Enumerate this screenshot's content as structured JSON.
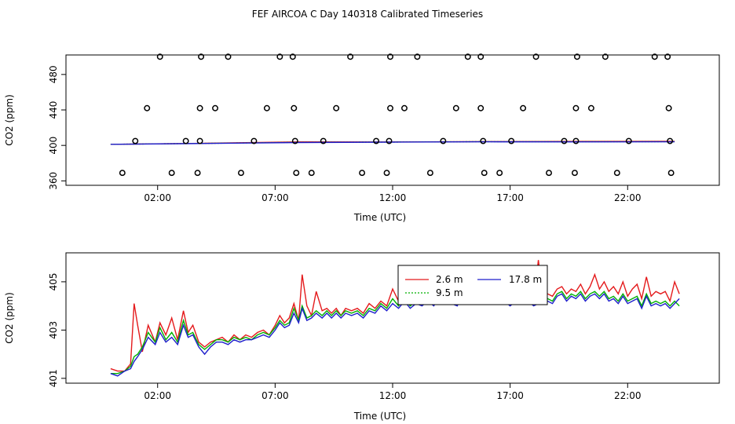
{
  "title": "FEF AIRCOA C  Day 140318  Calibrated Timeseries",
  "colors": {
    "series_2_6": "#e41a1c",
    "series_9_5": "#00b000",
    "series_17_8": "#1f1fcc",
    "axis": "#000000",
    "markers": "#000000"
  },
  "chart_data": [
    {
      "type": "scatter",
      "title": "",
      "xlabel": "Time (UTC)",
      "ylabel": "CO2 (ppm)",
      "xlim": [
        -1.9,
        25.9
      ],
      "ylim": [
        355,
        502
      ],
      "xticks": [
        2,
        7,
        12,
        17,
        22
      ],
      "xtick_labels": [
        "02:00",
        "07:00",
        "12:00",
        "17:00",
        "22:00"
      ],
      "yticks": [
        360,
        400,
        440,
        480
      ],
      "ytick_labels": [
        "360",
        "400",
        "440",
        "480"
      ],
      "calibration_points": [
        {
          "x": 2.1,
          "y": 500
        },
        {
          "x": 3.85,
          "y": 500
        },
        {
          "x": 5.0,
          "y": 500
        },
        {
          "x": 7.2,
          "y": 500
        },
        {
          "x": 7.75,
          "y": 500
        },
        {
          "x": 10.2,
          "y": 500
        },
        {
          "x": 11.9,
          "y": 500
        },
        {
          "x": 13.05,
          "y": 500
        },
        {
          "x": 15.2,
          "y": 500
        },
        {
          "x": 15.75,
          "y": 500
        },
        {
          "x": 18.1,
          "y": 500
        },
        {
          "x": 19.85,
          "y": 500
        },
        {
          "x": 21.05,
          "y": 500
        },
        {
          "x": 23.15,
          "y": 500
        },
        {
          "x": 23.7,
          "y": 500
        },
        {
          "x": 1.55,
          "y": 442
        },
        {
          "x": 3.8,
          "y": 442
        },
        {
          "x": 4.45,
          "y": 442
        },
        {
          "x": 6.65,
          "y": 442
        },
        {
          "x": 7.8,
          "y": 442
        },
        {
          "x": 9.6,
          "y": 442
        },
        {
          "x": 11.9,
          "y": 442
        },
        {
          "x": 12.5,
          "y": 442
        },
        {
          "x": 14.7,
          "y": 442
        },
        {
          "x": 15.75,
          "y": 442
        },
        {
          "x": 17.55,
          "y": 442
        },
        {
          "x": 19.8,
          "y": 442
        },
        {
          "x": 20.45,
          "y": 442
        },
        {
          "x": 23.75,
          "y": 442
        },
        {
          "x": 1.05,
          "y": 405
        },
        {
          "x": 3.2,
          "y": 405
        },
        {
          "x": 3.8,
          "y": 405
        },
        {
          "x": 6.1,
          "y": 405
        },
        {
          "x": 7.85,
          "y": 405
        },
        {
          "x": 9.05,
          "y": 405
        },
        {
          "x": 11.3,
          "y": 405
        },
        {
          "x": 11.85,
          "y": 405
        },
        {
          "x": 14.15,
          "y": 405
        },
        {
          "x": 15.85,
          "y": 405
        },
        {
          "x": 17.05,
          "y": 405
        },
        {
          "x": 19.3,
          "y": 405
        },
        {
          "x": 19.8,
          "y": 405
        },
        {
          "x": 22.05,
          "y": 405
        },
        {
          "x": 23.8,
          "y": 405
        },
        {
          "x": 0.5,
          "y": 369
        },
        {
          "x": 2.6,
          "y": 369
        },
        {
          "x": 3.7,
          "y": 369
        },
        {
          "x": 5.55,
          "y": 369
        },
        {
          "x": 7.9,
          "y": 369
        },
        {
          "x": 8.55,
          "y": 369
        },
        {
          "x": 10.7,
          "y": 369
        },
        {
          "x": 11.75,
          "y": 369
        },
        {
          "x": 13.6,
          "y": 369
        },
        {
          "x": 15.9,
          "y": 369
        },
        {
          "x": 16.55,
          "y": 369
        },
        {
          "x": 18.65,
          "y": 369
        },
        {
          "x": 19.75,
          "y": 369
        },
        {
          "x": 21.55,
          "y": 369
        },
        {
          "x": 23.85,
          "y": 369
        }
      ],
      "series": [
        {
          "name": "2.6 m",
          "x": [
            0,
            4,
            8,
            12,
            16,
            20,
            24
          ],
          "values": [
            401.2,
            402.4,
            404.0,
            403.9,
            404.3,
            404.5,
            404.6
          ]
        },
        {
          "name": "9.5 m",
          "x": [
            0,
            4,
            8,
            12,
            16,
            20,
            24
          ],
          "values": [
            401.2,
            402.3,
            403.5,
            403.8,
            404.2,
            404.2,
            404.2
          ]
        },
        {
          "name": "17.8 m",
          "x": [
            0,
            4,
            8,
            12,
            16,
            20,
            24
          ],
          "values": [
            401.2,
            402.2,
            403.3,
            403.7,
            404.1,
            404.0,
            404.1
          ]
        }
      ]
    },
    {
      "type": "line",
      "title": "",
      "xlabel": "Time (UTC)",
      "ylabel": "CO2 (ppm)",
      "xlim": [
        -1.9,
        25.9
      ],
      "ylim": [
        400.8,
        406.2
      ],
      "xticks": [
        2,
        7,
        12,
        17,
        22
      ],
      "xtick_labels": [
        "02:00",
        "07:00",
        "12:00",
        "17:00",
        "22:00"
      ],
      "yticks": [
        401,
        403,
        405
      ],
      "ytick_labels": [
        "401",
        "403",
        "405"
      ],
      "legend": {
        "placement": "top-center",
        "entries": [
          "2.6 m",
          "17.8 m",
          "9.5 m"
        ]
      },
      "series": [
        {
          "name": "2.6 m",
          "color": "#e41a1c",
          "x": [
            0.0,
            0.3,
            0.6,
            0.85,
            1.0,
            1.15,
            1.35,
            1.6,
            1.9,
            2.1,
            2.35,
            2.6,
            2.85,
            3.1,
            3.3,
            3.5,
            3.75,
            4.0,
            4.25,
            4.5,
            4.75,
            5.0,
            5.25,
            5.5,
            5.75,
            6.0,
            6.25,
            6.5,
            6.75,
            7.0,
            7.2,
            7.4,
            7.6,
            7.8,
            8.0,
            8.15,
            8.35,
            8.55,
            8.75,
            9.0,
            9.2,
            9.4,
            9.6,
            9.8,
            10.0,
            10.25,
            10.5,
            10.75,
            11.0,
            11.25,
            11.5,
            11.75,
            12.0,
            12.25,
            12.5,
            12.75,
            13.0,
            13.25,
            13.5,
            13.75,
            14.0,
            14.25,
            14.5,
            14.75,
            15.0,
            15.25,
            15.5,
            15.75,
            16.0,
            16.25,
            16.5,
            16.75,
            17.0,
            17.25,
            17.5,
            17.75,
            18.0,
            18.2,
            18.4,
            18.6,
            18.8,
            19.0,
            19.2,
            19.4,
            19.6,
            19.8,
            20.0,
            20.2,
            20.4,
            20.6,
            20.8,
            21.0,
            21.2,
            21.4,
            21.6,
            21.8,
            22.0,
            22.2,
            22.4,
            22.6,
            22.8,
            23.0,
            23.2,
            23.4,
            23.6,
            23.8,
            24.0,
            24.2
          ],
          "values": [
            401.4,
            401.3,
            401.3,
            401.6,
            404.1,
            403.2,
            402.1,
            403.2,
            402.5,
            403.3,
            402.8,
            403.5,
            402.6,
            403.8,
            402.9,
            403.2,
            402.5,
            402.3,
            402.5,
            402.6,
            402.7,
            402.5,
            402.8,
            402.6,
            402.8,
            402.7,
            402.9,
            403.0,
            402.8,
            403.2,
            403.6,
            403.3,
            403.5,
            404.1,
            403.4,
            405.3,
            404.0,
            403.6,
            404.6,
            403.8,
            403.9,
            403.7,
            403.9,
            403.6,
            403.9,
            403.8,
            403.9,
            403.7,
            404.1,
            403.9,
            404.2,
            404.0,
            404.7,
            404.2,
            404.6,
            404.1,
            404.4,
            404.3,
            404.5,
            404.3,
            404.8,
            404.6,
            404.4,
            404.2,
            405.0,
            404.4,
            404.8,
            404.6,
            404.5,
            404.3,
            404.4,
            404.6,
            404.3,
            404.5,
            404.4,
            404.5,
            404.2,
            405.9,
            404.3,
            404.5,
            404.4,
            404.7,
            404.8,
            404.5,
            404.7,
            404.6,
            404.9,
            404.5,
            404.8,
            405.3,
            404.7,
            405.0,
            404.6,
            404.8,
            404.5,
            405.0,
            404.4,
            404.7,
            404.9,
            404.3,
            405.2,
            404.4,
            404.6,
            404.5,
            404.6,
            404.2,
            405.0,
            404.5
          ]
        },
        {
          "name": "9.5 m",
          "color": "#00b000",
          "x": [
            0.0,
            0.3,
            0.6,
            0.85,
            1.0,
            1.15,
            1.35,
            1.6,
            1.9,
            2.1,
            2.35,
            2.6,
            2.85,
            3.1,
            3.3,
            3.5,
            3.75,
            4.0,
            4.25,
            4.5,
            4.75,
            5.0,
            5.25,
            5.5,
            5.75,
            6.0,
            6.25,
            6.5,
            6.75,
            7.0,
            7.2,
            7.4,
            7.6,
            7.8,
            8.0,
            8.15,
            8.35,
            8.55,
            8.75,
            9.0,
            9.2,
            9.4,
            9.6,
            9.8,
            10.0,
            10.25,
            10.5,
            10.75,
            11.0,
            11.25,
            11.5,
            11.75,
            12.0,
            12.25,
            12.5,
            12.75,
            13.0,
            13.25,
            13.5,
            13.75,
            14.0,
            14.25,
            14.5,
            14.75,
            15.0,
            15.25,
            15.5,
            15.75,
            16.0,
            16.25,
            16.5,
            16.75,
            17.0,
            17.25,
            17.5,
            17.75,
            18.0,
            18.2,
            18.4,
            18.6,
            18.8,
            19.0,
            19.2,
            19.4,
            19.6,
            19.8,
            20.0,
            20.2,
            20.4,
            20.6,
            20.8,
            21.0,
            21.2,
            21.4,
            21.6,
            21.8,
            22.0,
            22.2,
            22.4,
            22.6,
            22.8,
            23.0,
            23.2,
            23.4,
            23.6,
            23.8,
            24.0,
            24.2
          ],
          "values": [
            401.2,
            401.2,
            401.3,
            401.5,
            401.9,
            402.0,
            402.3,
            402.9,
            402.5,
            403.1,
            402.6,
            402.9,
            402.5,
            403.4,
            402.8,
            402.9,
            402.4,
            402.2,
            402.4,
            402.6,
            402.6,
            402.5,
            402.7,
            402.6,
            402.7,
            402.6,
            402.8,
            402.9,
            402.8,
            403.1,
            403.4,
            403.2,
            403.3,
            403.9,
            403.4,
            404.0,
            403.5,
            403.6,
            403.8,
            403.6,
            403.8,
            403.6,
            403.8,
            403.6,
            403.8,
            403.7,
            403.8,
            403.6,
            403.9,
            403.8,
            404.1,
            403.9,
            404.3,
            404.0,
            404.3,
            404.0,
            404.2,
            404.1,
            404.3,
            404.1,
            404.5,
            404.3,
            404.2,
            404.1,
            405.3,
            404.2,
            404.5,
            404.4,
            404.3,
            404.2,
            404.2,
            404.3,
            404.1,
            404.3,
            404.2,
            404.3,
            404.1,
            404.2,
            404.2,
            404.3,
            404.2,
            404.5,
            404.6,
            404.3,
            404.5,
            404.4,
            404.6,
            404.3,
            404.5,
            404.6,
            404.4,
            404.6,
            404.3,
            404.4,
            404.2,
            404.5,
            404.2,
            404.3,
            404.4,
            404.0,
            404.5,
            404.1,
            404.2,
            404.1,
            404.2,
            404.0,
            404.2,
            404.0
          ]
        },
        {
          "name": "17.8 m",
          "color": "#1f1fcc",
          "x": [
            0.0,
            0.3,
            0.6,
            0.85,
            1.0,
            1.15,
            1.35,
            1.6,
            1.9,
            2.1,
            2.35,
            2.6,
            2.85,
            3.1,
            3.3,
            3.5,
            3.75,
            4.0,
            4.25,
            4.5,
            4.75,
            5.0,
            5.25,
            5.5,
            5.75,
            6.0,
            6.25,
            6.5,
            6.75,
            7.0,
            7.2,
            7.4,
            7.6,
            7.8,
            8.0,
            8.15,
            8.35,
            8.55,
            8.75,
            9.0,
            9.2,
            9.4,
            9.6,
            9.8,
            10.0,
            10.25,
            10.5,
            10.75,
            11.0,
            11.25,
            11.5,
            11.75,
            12.0,
            12.25,
            12.5,
            12.75,
            13.0,
            13.25,
            13.5,
            13.75,
            14.0,
            14.25,
            14.5,
            14.75,
            15.0,
            15.25,
            15.5,
            15.75,
            16.0,
            16.25,
            16.5,
            16.75,
            17.0,
            17.25,
            17.5,
            17.75,
            18.0,
            18.2,
            18.4,
            18.6,
            18.8,
            19.0,
            19.2,
            19.4,
            19.6,
            19.8,
            20.0,
            20.2,
            20.4,
            20.6,
            20.8,
            21.0,
            21.2,
            21.4,
            21.6,
            21.8,
            22.0,
            22.2,
            22.4,
            22.6,
            22.8,
            23.0,
            23.2,
            23.4,
            23.6,
            23.8,
            24.0,
            24.2
          ],
          "values": [
            401.2,
            401.1,
            401.3,
            401.4,
            401.7,
            401.9,
            402.2,
            402.7,
            402.4,
            402.9,
            402.5,
            402.7,
            402.4,
            403.2,
            402.7,
            402.8,
            402.3,
            402.0,
            402.3,
            402.5,
            402.5,
            402.4,
            402.6,
            402.5,
            402.6,
            402.6,
            402.7,
            402.8,
            402.7,
            403.0,
            403.3,
            403.1,
            403.2,
            403.7,
            403.3,
            403.9,
            403.4,
            403.5,
            403.7,
            403.5,
            403.7,
            403.5,
            403.7,
            403.5,
            403.7,
            403.6,
            403.7,
            403.5,
            403.8,
            403.7,
            404.0,
            403.8,
            404.1,
            403.9,
            404.2,
            403.9,
            404.1,
            404.0,
            404.2,
            404.0,
            404.4,
            404.2,
            404.1,
            404.0,
            404.6,
            404.1,
            404.4,
            404.3,
            404.2,
            404.1,
            404.1,
            404.2,
            404.0,
            404.2,
            404.1,
            404.2,
            404.0,
            404.1,
            404.1,
            404.2,
            404.1,
            404.4,
            404.5,
            404.2,
            404.4,
            404.3,
            404.5,
            404.2,
            404.4,
            404.5,
            404.3,
            404.5,
            404.2,
            404.3,
            404.1,
            404.4,
            404.1,
            404.2,
            404.3,
            403.9,
            404.4,
            404.0,
            404.1,
            404.0,
            404.1,
            403.9,
            404.1,
            404.3
          ]
        }
      ]
    }
  ]
}
